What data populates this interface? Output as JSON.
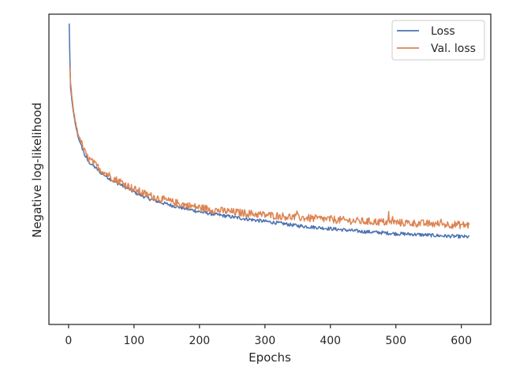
{
  "chart_data": {
    "type": "line",
    "title": "",
    "xlabel": "Epochs",
    "ylabel": "Negative log-likelihood",
    "xlim": [
      -30,
      645
    ],
    "ylim": [
      0,
      1
    ],
    "x_ticks": [
      0,
      100,
      200,
      300,
      400,
      500,
      600
    ],
    "y_ticks_visible": false,
    "grid": false,
    "legend_position": "top-right",
    "series": [
      {
        "name": "Loss",
        "color": "#4c72b0",
        "noise": 0.006,
        "points": [
          [
            1,
            1.0
          ],
          [
            3,
            0.78
          ],
          [
            6,
            0.72
          ],
          [
            10,
            0.66
          ],
          [
            15,
            0.61
          ],
          [
            20,
            0.58
          ],
          [
            25,
            0.55
          ],
          [
            30,
            0.53
          ],
          [
            40,
            0.51
          ],
          [
            50,
            0.49
          ],
          [
            60,
            0.475
          ],
          [
            70,
            0.46
          ],
          [
            80,
            0.45
          ],
          [
            90,
            0.438
          ],
          [
            100,
            0.425
          ],
          [
            120,
            0.405
          ],
          [
            140,
            0.39
          ],
          [
            160,
            0.378
          ],
          [
            180,
            0.368
          ],
          [
            200,
            0.358
          ],
          [
            220,
            0.35
          ],
          [
            250,
            0.34
          ],
          [
            275,
            0.332
          ],
          [
            300,
            0.325
          ],
          [
            325,
            0.318
          ],
          [
            350,
            0.31
          ],
          [
            375,
            0.305
          ],
          [
            400,
            0.3
          ],
          [
            425,
            0.295
          ],
          [
            450,
            0.29
          ],
          [
            475,
            0.287
          ],
          [
            500,
            0.283
          ],
          [
            525,
            0.281
          ],
          [
            550,
            0.278
          ],
          [
            575,
            0.275
          ],
          [
            600,
            0.273
          ],
          [
            612,
            0.272
          ]
        ]
      },
      {
        "name": "Val. loss",
        "color": "#dd8452",
        "noise": 0.013,
        "points": [
          [
            2,
            0.85
          ],
          [
            3,
            0.8
          ],
          [
            6,
            0.73
          ],
          [
            10,
            0.67
          ],
          [
            15,
            0.62
          ],
          [
            20,
            0.59
          ],
          [
            25,
            0.56
          ],
          [
            30,
            0.54
          ],
          [
            40,
            0.52
          ],
          [
            50,
            0.5
          ],
          [
            60,
            0.485
          ],
          [
            70,
            0.47
          ],
          [
            80,
            0.46
          ],
          [
            90,
            0.447
          ],
          [
            100,
            0.435
          ],
          [
            120,
            0.416
          ],
          [
            140,
            0.402
          ],
          [
            160,
            0.39
          ],
          [
            180,
            0.38
          ],
          [
            200,
            0.372
          ],
          [
            220,
            0.365
          ],
          [
            250,
            0.357
          ],
          [
            275,
            0.352
          ],
          [
            300,
            0.347
          ],
          [
            325,
            0.343
          ],
          [
            350,
            0.338
          ],
          [
            375,
            0.335
          ],
          [
            400,
            0.332
          ],
          [
            425,
            0.328
          ],
          [
            450,
            0.325
          ],
          [
            475,
            0.323
          ],
          [
            500,
            0.321
          ],
          [
            525,
            0.319
          ],
          [
            550,
            0.317
          ],
          [
            575,
            0.315
          ],
          [
            600,
            0.313
          ],
          [
            612,
            0.312
          ]
        ]
      }
    ]
  }
}
